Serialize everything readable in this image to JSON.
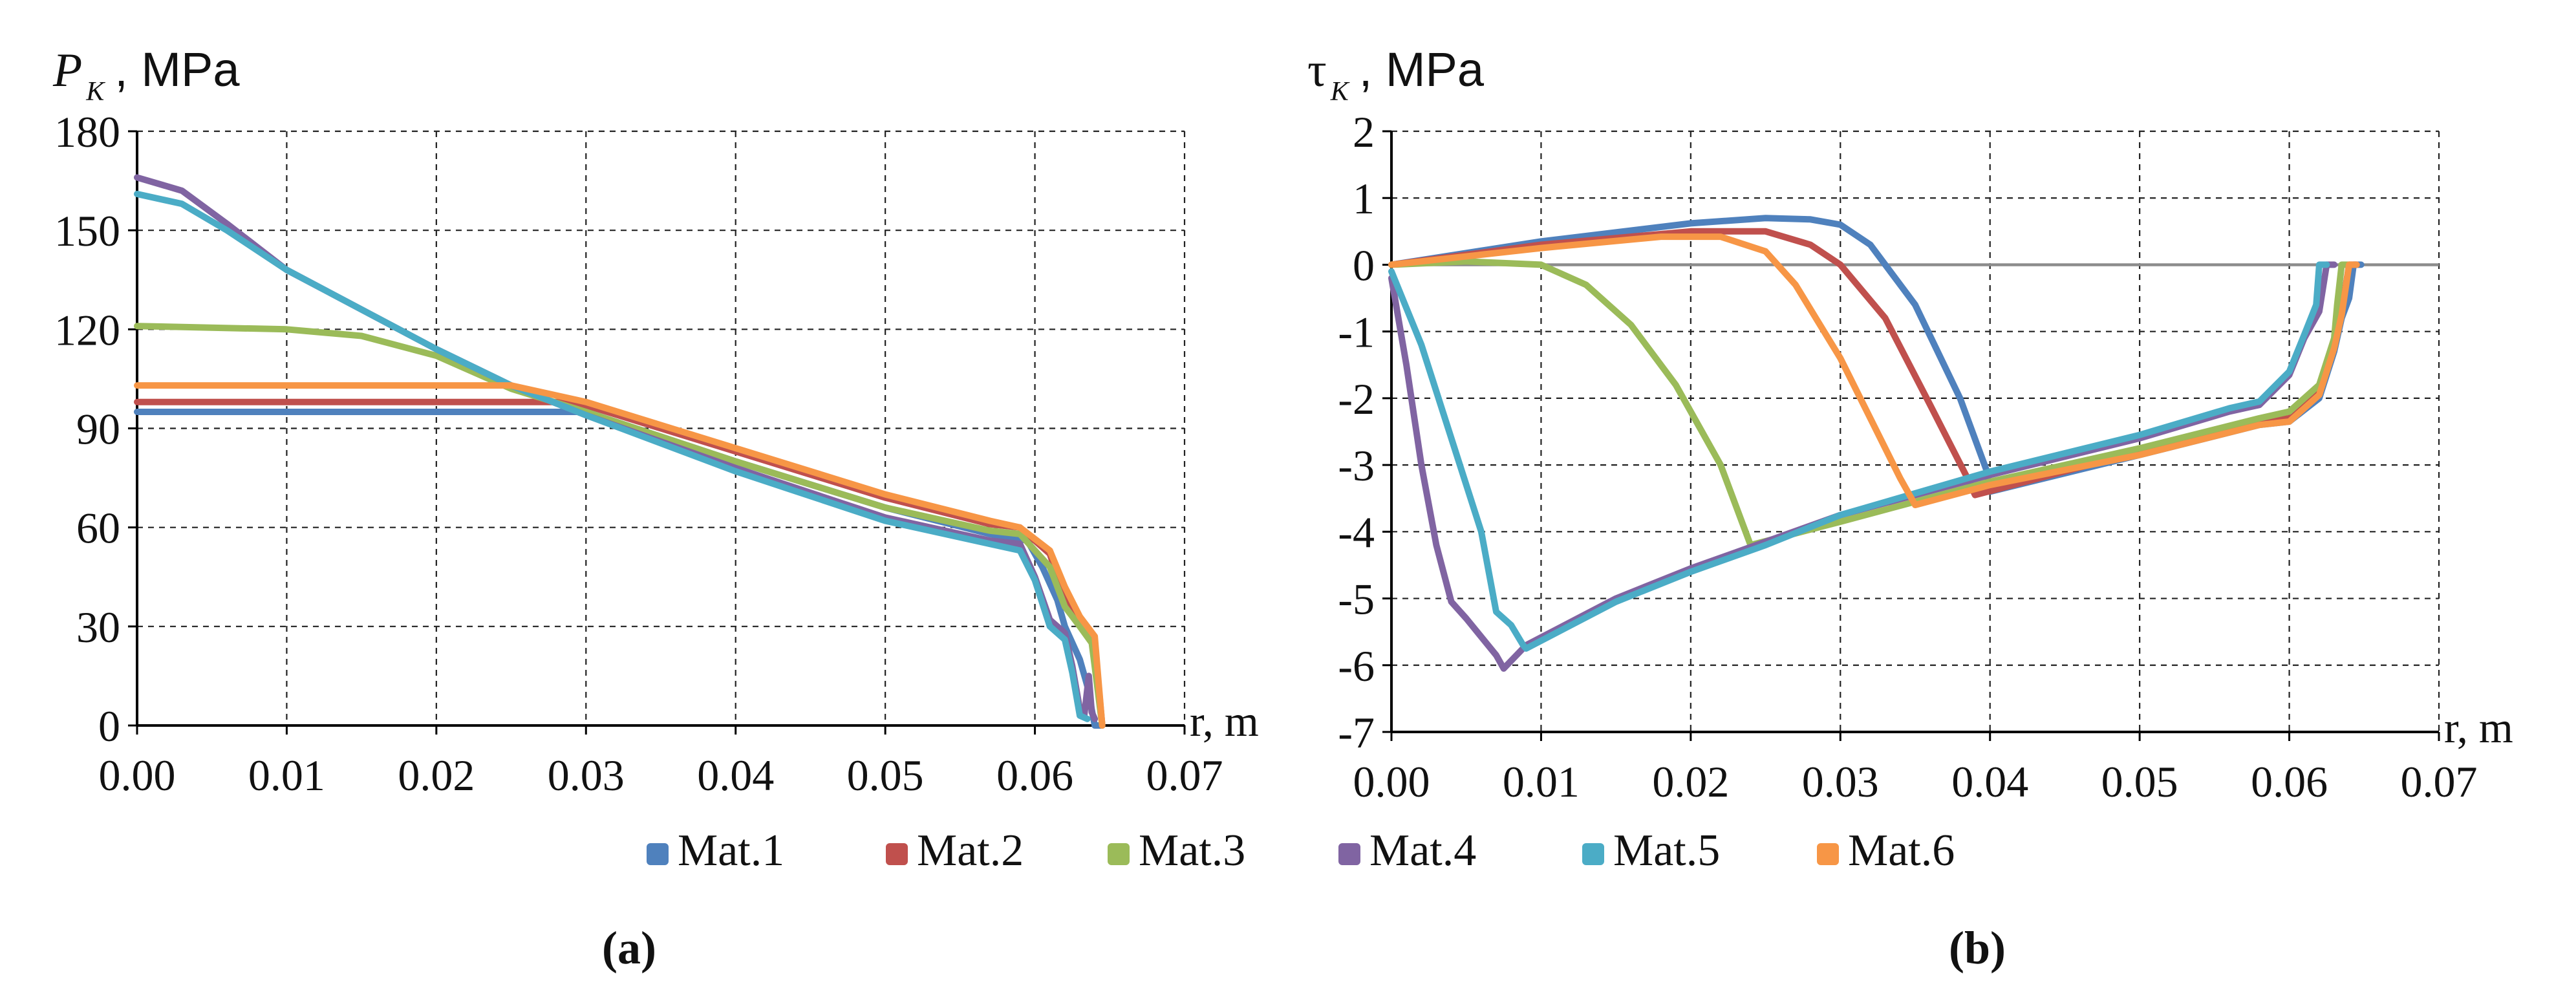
{
  "chart_data": [
    {
      "type": "line",
      "panel_label": "(a)",
      "ylabel_symbol": "P",
      "ylabel_subscript": "K",
      "ylabel_unit": ", MPa",
      "xlabel": "r, m",
      "xlim": [
        0,
        0.07
      ],
      "ylim": [
        0,
        180
      ],
      "x_ticks": [
        "0.00",
        "0.01",
        "0.02",
        "0.03",
        "0.04",
        "0.05",
        "0.06",
        "0.07"
      ],
      "x_tick_values": [
        0,
        0.01,
        0.02,
        0.03,
        0.04,
        0.05,
        0.06,
        0.07
      ],
      "y_ticks": [
        "0",
        "30",
        "60",
        "90",
        "120",
        "150",
        "180"
      ],
      "y_tick_values": [
        0,
        30,
        60,
        90,
        120,
        150,
        180
      ],
      "zero_line": false,
      "series": [
        {
          "name": "Mat.1",
          "color": "#4f81bd",
          "points": [
            [
              0,
              95
            ],
            [
              0.03,
              95
            ],
            [
              0.04,
              80
            ],
            [
              0.05,
              66
            ],
            [
              0.057,
              58
            ],
            [
              0.0595,
              56
            ],
            [
              0.0605,
              48
            ],
            [
              0.0615,
              38
            ],
            [
              0.062,
              30
            ],
            [
              0.063,
              20
            ],
            [
              0.0635,
              12
            ],
            [
              0.064,
              0
            ],
            [
              0.0645,
              0
            ]
          ]
        },
        {
          "name": "Mat.2",
          "color": "#c0504d",
          "points": [
            [
              0,
              98
            ],
            [
              0.028,
              98
            ],
            [
              0.03,
              97
            ],
            [
              0.04,
              83
            ],
            [
              0.05,
              69
            ],
            [
              0.057,
              61
            ],
            [
              0.059,
              60
            ],
            [
              0.061,
              52
            ],
            [
              0.062,
              38
            ],
            [
              0.063,
              32
            ],
            [
              0.064,
              25
            ],
            [
              0.0645,
              0
            ]
          ]
        },
        {
          "name": "Mat.3",
          "color": "#9bbb59",
          "points": [
            [
              0,
              121
            ],
            [
              0.01,
              120
            ],
            [
              0.015,
              118
            ],
            [
              0.02,
              112
            ],
            [
              0.025,
              102
            ],
            [
              0.03,
              95
            ],
            [
              0.04,
              80
            ],
            [
              0.05,
              66
            ],
            [
              0.057,
              59
            ],
            [
              0.059,
              58
            ],
            [
              0.061,
              48
            ],
            [
              0.062,
              36
            ],
            [
              0.063,
              30
            ],
            [
              0.0638,
              25
            ],
            [
              0.0645,
              0
            ]
          ]
        },
        {
          "name": "Mat.4",
          "color": "#8064a2",
          "points": [
            [
              0,
              166
            ],
            [
              0.003,
              162
            ],
            [
              0.006,
              152
            ],
            [
              0.01,
              138
            ],
            [
              0.02,
              114
            ],
            [
              0.025,
              103
            ],
            [
              0.03,
              94
            ],
            [
              0.04,
              78
            ],
            [
              0.05,
              63
            ],
            [
              0.057,
              56
            ],
            [
              0.059,
              55
            ],
            [
              0.06,
              45
            ],
            [
              0.061,
              32
            ],
            [
              0.062,
              28
            ],
            [
              0.0625,
              18
            ],
            [
              0.063,
              5
            ],
            [
              0.0633,
              3
            ],
            [
              0.0636,
              15
            ],
            [
              0.0638,
              4
            ],
            [
              0.064,
              2
            ]
          ]
        },
        {
          "name": "Mat.5",
          "color": "#4bacc6",
          "points": [
            [
              0,
              161
            ],
            [
              0.003,
              158
            ],
            [
              0.006,
              150
            ],
            [
              0.01,
              138
            ],
            [
              0.02,
              114
            ],
            [
              0.025,
              103
            ],
            [
              0.03,
              94
            ],
            [
              0.04,
              77
            ],
            [
              0.05,
              62
            ],
            [
              0.057,
              55
            ],
            [
              0.059,
              53
            ],
            [
              0.06,
              44
            ],
            [
              0.061,
              30
            ],
            [
              0.062,
              26
            ],
            [
              0.0625,
              16
            ],
            [
              0.063,
              3
            ],
            [
              0.0635,
              2
            ]
          ]
        },
        {
          "name": "Mat.6",
          "color": "#f79646",
          "points": [
            [
              0,
              103
            ],
            [
              0.025,
              103
            ],
            [
              0.03,
              98
            ],
            [
              0.04,
              84
            ],
            [
              0.05,
              70
            ],
            [
              0.057,
              62
            ],
            [
              0.059,
              60
            ],
            [
              0.061,
              53
            ],
            [
              0.062,
              42
            ],
            [
              0.063,
              33
            ],
            [
              0.064,
              27
            ],
            [
              0.0645,
              0
            ]
          ]
        }
      ]
    },
    {
      "type": "line",
      "panel_label": "(b)",
      "ylabel_symbol": "τ",
      "ylabel_subscript": "K",
      "ylabel_unit": ", MPa",
      "xlabel": "r, m",
      "xlim": [
        0,
        0.07
      ],
      "ylim": [
        -7,
        2
      ],
      "x_ticks": [
        "0.00",
        "0.01",
        "0.02",
        "0.03",
        "0.04",
        "0.05",
        "0.06",
        "0.07"
      ],
      "x_tick_values": [
        0,
        0.01,
        0.02,
        0.03,
        0.04,
        0.05,
        0.06,
        0.07
      ],
      "y_ticks": [
        "2",
        "1",
        "0",
        "-1",
        "-2",
        "-3",
        "-4",
        "-5",
        "-6",
        "-7"
      ],
      "y_tick_values": [
        2,
        1,
        0,
        -1,
        -2,
        -3,
        -4,
        -5,
        -6,
        -7
      ],
      "zero_line": true,
      "series": [
        {
          "name": "Mat.1",
          "color": "#4f81bd",
          "points": [
            [
              0,
              0
            ],
            [
              0.01,
              0.35
            ],
            [
              0.02,
              0.62
            ],
            [
              0.025,
              0.7
            ],
            [
              0.028,
              0.68
            ],
            [
              0.03,
              0.6
            ],
            [
              0.032,
              0.3
            ],
            [
              0.035,
              -0.6
            ],
            [
              0.038,
              -2
            ],
            [
              0.0398,
              -3.1
            ],
            [
              0.04,
              -3.4
            ],
            [
              0.05,
              -2.85
            ],
            [
              0.058,
              -2.4
            ],
            [
              0.06,
              -2.35
            ],
            [
              0.062,
              -2
            ],
            [
              0.063,
              -1.3
            ],
            [
              0.0635,
              -0.8
            ],
            [
              0.064,
              -0.5
            ],
            [
              0.0643,
              0
            ],
            [
              0.0648,
              0
            ]
          ]
        },
        {
          "name": "Mat.2",
          "color": "#c0504d",
          "points": [
            [
              0,
              0
            ],
            [
              0.01,
              0.3
            ],
            [
              0.02,
              0.5
            ],
            [
              0.025,
              0.5
            ],
            [
              0.028,
              0.3
            ],
            [
              0.03,
              0
            ],
            [
              0.033,
              -0.8
            ],
            [
              0.036,
              -2.1
            ],
            [
              0.0385,
              -3.2
            ],
            [
              0.039,
              -3.45
            ],
            [
              0.05,
              -2.8
            ],
            [
              0.058,
              -2.35
            ],
            [
              0.06,
              -2.3
            ],
            [
              0.062,
              -1.9
            ],
            [
              0.063,
              -1.2
            ],
            [
              0.0635,
              -0.7
            ],
            [
              0.064,
              0
            ],
            [
              0.0645,
              0
            ]
          ]
        },
        {
          "name": "Mat.3",
          "color": "#9bbb59",
          "points": [
            [
              0,
              0
            ],
            [
              0.005,
              0.05
            ],
            [
              0.01,
              0
            ],
            [
              0.013,
              -0.3
            ],
            [
              0.016,
              -0.9
            ],
            [
              0.019,
              -1.8
            ],
            [
              0.022,
              -3
            ],
            [
              0.024,
              -4.2
            ],
            [
              0.03,
              -3.85
            ],
            [
              0.04,
              -3.25
            ],
            [
              0.05,
              -2.75
            ],
            [
              0.058,
              -2.3
            ],
            [
              0.06,
              -2.2
            ],
            [
              0.062,
              -1.8
            ],
            [
              0.063,
              -1.1
            ],
            [
              0.0632,
              -0.6
            ],
            [
              0.0635,
              0
            ],
            [
              0.064,
              0
            ]
          ]
        },
        {
          "name": "Mat.4",
          "color": "#8064a2",
          "points": [
            [
              0,
              -0.2
            ],
            [
              0.001,
              -1.5
            ],
            [
              0.002,
              -3
            ],
            [
              0.003,
              -4.2
            ],
            [
              0.004,
              -5.05
            ],
            [
              0.005,
              -5.3
            ],
            [
              0.007,
              -5.85
            ],
            [
              0.0075,
              -6.05
            ],
            [
              0.009,
              -5.7
            ],
            [
              0.015,
              -5
            ],
            [
              0.02,
              -4.55
            ],
            [
              0.025,
              -4.15
            ],
            [
              0.03,
              -3.75
            ],
            [
              0.04,
              -3.15
            ],
            [
              0.05,
              -2.6
            ],
            [
              0.056,
              -2.2
            ],
            [
              0.058,
              -2.1
            ],
            [
              0.06,
              -1.65
            ],
            [
              0.061,
              -1.1
            ],
            [
              0.062,
              -0.7
            ],
            [
              0.0625,
              0
            ],
            [
              0.063,
              0
            ]
          ]
        },
        {
          "name": "Mat.5",
          "color": "#4bacc6",
          "points": [
            [
              0,
              -0.1
            ],
            [
              0.002,
              -1.2
            ],
            [
              0.004,
              -2.6
            ],
            [
              0.006,
              -4
            ],
            [
              0.007,
              -5.2
            ],
            [
              0.008,
              -5.4
            ],
            [
              0.0088,
              -5.7
            ],
            [
              0.009,
              -5.75
            ],
            [
              0.015,
              -5.05
            ],
            [
              0.02,
              -4.6
            ],
            [
              0.025,
              -4.2
            ],
            [
              0.03,
              -3.75
            ],
            [
              0.04,
              -3.1
            ],
            [
              0.05,
              -2.55
            ],
            [
              0.056,
              -2.15
            ],
            [
              0.058,
              -2.05
            ],
            [
              0.06,
              -1.6
            ],
            [
              0.061,
              -1.05
            ],
            [
              0.0618,
              -0.6
            ],
            [
              0.062,
              0
            ],
            [
              0.0625,
              0
            ]
          ]
        },
        {
          "name": "Mat.6",
          "color": "#f79646",
          "points": [
            [
              0,
              0
            ],
            [
              0.01,
              0.25
            ],
            [
              0.018,
              0.42
            ],
            [
              0.022,
              0.42
            ],
            [
              0.025,
              0.2
            ],
            [
              0.027,
              -0.3
            ],
            [
              0.03,
              -1.4
            ],
            [
              0.032,
              -2.3
            ],
            [
              0.034,
              -3.2
            ],
            [
              0.035,
              -3.6
            ],
            [
              0.04,
              -3.3
            ],
            [
              0.05,
              -2.85
            ],
            [
              0.058,
              -2.4
            ],
            [
              0.06,
              -2.35
            ],
            [
              0.062,
              -1.95
            ],
            [
              0.063,
              -1.25
            ],
            [
              0.0635,
              -0.75
            ],
            [
              0.064,
              0
            ],
            [
              0.0645,
              0
            ]
          ]
        }
      ]
    }
  ],
  "legend": {
    "placement": "bottom-center",
    "entries": [
      "Mat.1",
      "Mat.2",
      "Mat.3",
      "Mat.4",
      "Mat.5",
      "Mat.6"
    ],
    "colors": [
      "#4f81bd",
      "#c0504d",
      "#9bbb59",
      "#8064a2",
      "#4bacc6",
      "#f79646"
    ]
  }
}
